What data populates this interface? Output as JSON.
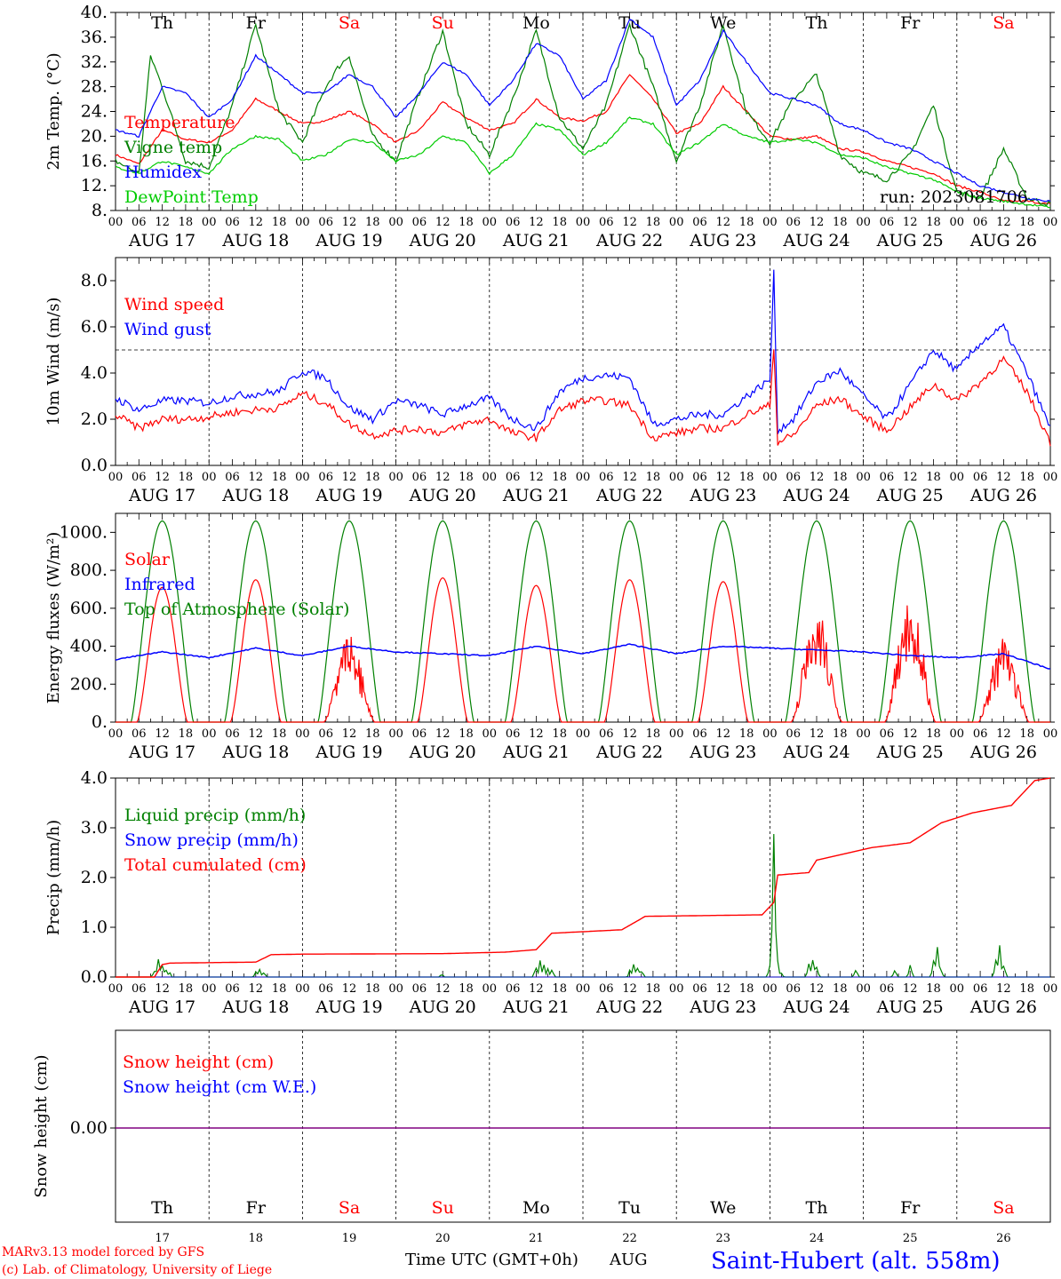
{
  "run_label": "run: 2023081706",
  "days": [
    "Th",
    "Fr",
    "Sa",
    "Su",
    "Mo",
    "Tu",
    "We",
    "Th",
    "Fr",
    "Sa"
  ],
  "weekend_color": "#ff0000",
  "dates": [
    "AUG 17",
    "AUG 18",
    "AUG 19",
    "AUG 20",
    "AUG 21",
    "AUG 22",
    "AUG 23",
    "AUG 24",
    "AUG 25",
    "AUG 26"
  ],
  "date_numbers": [
    "17",
    "18",
    "19",
    "20",
    "21",
    "22",
    "23",
    "24",
    "25",
    "26"
  ],
  "hour_ticks": [
    "00",
    "06",
    "12",
    "18"
  ],
  "final_hour": "00",
  "footer": {
    "model": "MARv3.13 model forced by GFS",
    "lab": "(c) Lab. of Climatology, University of Liege",
    "xlabel": "Time UTC (GMT+0h)",
    "month": "AUG",
    "station": "Saint-Hubert (alt. 558m)"
  },
  "colors": {
    "red": "#ff0000",
    "green": "#008000",
    "blue": "#0000ff",
    "lightgreen": "#00cc00",
    "purple": "#800080"
  },
  "chart_data": [
    {
      "type": "line",
      "ylabel": "2m Temp. (°C)",
      "ylim": [
        8,
        40
      ],
      "yticks": [
        "8.",
        "12.",
        "16.",
        "20.",
        "24.",
        "28.",
        "32.",
        "36.",
        "40."
      ],
      "x_units": "hours since Aug 17 00 UTC",
      "series": [
        {
          "name": "Temperature",
          "color": "red",
          "x": [
            0,
            6,
            12,
            18,
            24,
            30,
            36,
            42,
            48,
            54,
            60,
            66,
            72,
            78,
            84,
            90,
            96,
            102,
            108,
            114,
            120,
            126,
            132,
            138,
            144,
            150,
            156,
            162,
            168,
            174,
            180,
            186,
            192,
            198,
            204,
            210,
            216,
            222,
            228,
            234,
            240
          ],
          "values": [
            17,
            15.5,
            21,
            19.5,
            19,
            21,
            26,
            24,
            22,
            22.5,
            24,
            22,
            19,
            21,
            25.5,
            23,
            21,
            22,
            26,
            23,
            22.5,
            24,
            30,
            26,
            20.5,
            22,
            28,
            24,
            20,
            19.5,
            20,
            18,
            17.5,
            16,
            15,
            14,
            12,
            11,
            9.5,
            9.5,
            9
          ]
        },
        {
          "name": "Vigne temp",
          "color": "green",
          "x": [
            0,
            6,
            9,
            12,
            18,
            24,
            30,
            36,
            42,
            48,
            54,
            57,
            60,
            66,
            72,
            78,
            84,
            90,
            96,
            102,
            108,
            114,
            120,
            126,
            132,
            138,
            144,
            150,
            156,
            162,
            168,
            174,
            180,
            186,
            192,
            198,
            204,
            210,
            216,
            222,
            228,
            234,
            240
          ],
          "values": [
            16,
            14,
            33,
            28,
            16,
            15,
            25,
            38,
            24,
            19,
            28,
            31,
            33,
            20,
            16,
            27,
            37,
            22,
            17,
            26,
            37,
            23,
            18,
            25,
            38,
            28,
            16,
            25,
            38,
            24,
            19,
            26,
            30,
            17,
            14,
            13,
            17,
            25,
            11,
            10,
            18,
            10,
            9
          ]
        },
        {
          "name": "Humidex",
          "color": "blue",
          "x": [
            0,
            6,
            12,
            18,
            24,
            30,
            36,
            42,
            48,
            54,
            60,
            66,
            72,
            78,
            84,
            90,
            96,
            102,
            108,
            114,
            120,
            126,
            132,
            138,
            144,
            150,
            156,
            162,
            168,
            174,
            180,
            186,
            192,
            198,
            204,
            210,
            216,
            222,
            228,
            234,
            240
          ],
          "values": [
            21,
            20,
            28,
            27,
            23,
            26,
            33,
            30,
            27,
            27,
            30,
            28,
            23,
            27,
            32,
            30,
            25,
            29,
            35,
            33,
            26,
            29,
            39,
            36,
            25,
            29,
            37,
            32,
            27,
            26,
            25,
            22,
            21,
            19,
            18,
            16,
            14,
            12,
            11,
            10,
            9.5
          ]
        },
        {
          "name": "DewPoint Temp",
          "color": "lightgreen",
          "x": [
            0,
            6,
            12,
            18,
            24,
            30,
            36,
            42,
            48,
            54,
            60,
            66,
            72,
            78,
            84,
            90,
            96,
            102,
            108,
            114,
            120,
            126,
            132,
            138,
            144,
            150,
            156,
            162,
            168,
            174,
            180,
            186,
            192,
            198,
            204,
            210,
            216,
            222,
            228,
            234,
            240
          ],
          "values": [
            15,
            14,
            16,
            15,
            14,
            18,
            20,
            19.5,
            16,
            17,
            19.5,
            19,
            16,
            17,
            20,
            19,
            14,
            17,
            22,
            21,
            17,
            19,
            23,
            22,
            17,
            19,
            22,
            20,
            19,
            19.5,
            19,
            17,
            16.5,
            15,
            14,
            13,
            11,
            10,
            9.5,
            9,
            8.5
          ]
        }
      ]
    },
    {
      "type": "line",
      "ylabel": "10m Wind (m/s)",
      "ylim": [
        0,
        9
      ],
      "yticks": [
        "0.0",
        "2.0",
        "4.0",
        "6.0",
        "8.0"
      ],
      "reference_line": 5,
      "series": [
        {
          "name": "Wind speed",
          "color": "red",
          "x": [
            0,
            6,
            12,
            18,
            24,
            30,
            36,
            42,
            48,
            54,
            60,
            66,
            72,
            78,
            84,
            90,
            96,
            102,
            108,
            114,
            120,
            126,
            132,
            138,
            144,
            150,
            156,
            162,
            168,
            169,
            170,
            174,
            180,
            186,
            192,
            198,
            204,
            210,
            216,
            222,
            228,
            234,
            240
          ],
          "values": [
            2.2,
            1.6,
            2,
            2,
            2.1,
            2.3,
            2.4,
            2.5,
            3.1,
            2.7,
            1.8,
            1.3,
            1.5,
            1.6,
            1.4,
            1.8,
            2,
            1.4,
            1.2,
            2.4,
            2.8,
            2.8,
            2.6,
            1.2,
            1.4,
            1.6,
            1.6,
            2.2,
            2.6,
            5.2,
            1,
            1.3,
            2.6,
            2.9,
            2.1,
            1.5,
            2.5,
            3.5,
            2.8,
            3.6,
            4.6,
            3.2,
            1
          ]
        },
        {
          "name": "Wind gust",
          "color": "blue",
          "x": [
            0,
            6,
            12,
            18,
            24,
            30,
            36,
            42,
            48,
            54,
            60,
            66,
            72,
            78,
            84,
            90,
            96,
            102,
            108,
            114,
            120,
            126,
            132,
            138,
            144,
            150,
            156,
            162,
            168,
            169,
            170,
            174,
            180,
            186,
            192,
            198,
            204,
            210,
            216,
            222,
            228,
            234,
            240
          ],
          "values": [
            2.9,
            2.4,
            2.8,
            2.8,
            2.7,
            3,
            3.1,
            3.2,
            4.1,
            3.8,
            2.5,
            2,
            2.8,
            2.6,
            2.2,
            2.6,
            2.9,
            2,
            1.6,
            3.2,
            3.8,
            3.9,
            3.8,
            1.8,
            2,
            2.2,
            2.2,
            3,
            3.7,
            8.3,
            1.5,
            2,
            3.6,
            4.1,
            3,
            2,
            3.5,
            5,
            4.1,
            5.3,
            6,
            4,
            1.6
          ]
        }
      ]
    },
    {
      "type": "line",
      "ylabel": "Energy fluxes (W/m²)",
      "ylim": [
        0,
        1100
      ],
      "yticks": [
        "0.",
        "200.",
        "400.",
        "600.",
        "800.",
        "1000."
      ],
      "series": [
        {
          "name": "Solar",
          "color": "red",
          "daily_peaks": [
            710,
            750,
            420,
            760,
            720,
            750,
            740,
            540,
            620,
            400
          ]
        },
        {
          "name": "Infrared",
          "color": "blue",
          "x": [
            0,
            12,
            24,
            36,
            48,
            60,
            72,
            84,
            96,
            108,
            120,
            132,
            144,
            156,
            168,
            180,
            192,
            204,
            216,
            228,
            240
          ],
          "values": [
            330,
            370,
            340,
            390,
            350,
            400,
            370,
            360,
            350,
            400,
            360,
            410,
            360,
            400,
            390,
            380,
            370,
            350,
            340,
            360,
            280
          ]
        },
        {
          "name": "Top of Atmosphere (Solar)",
          "color": "green",
          "daily_peak": 1060
        }
      ]
    },
    {
      "type": "line",
      "ylabel": "Precip (mm/h)",
      "ylim": [
        0,
        4
      ],
      "yticks": [
        "0.0",
        "1.0",
        "2.0",
        "3.0",
        "4.0"
      ],
      "series": [
        {
          "name": "Liquid precip (mm/h)",
          "color": "green",
          "x": [
            10,
            11,
            12,
            13,
            14,
            36,
            37,
            38,
            84,
            108,
            109,
            110,
            111,
            112,
            132,
            133,
            134,
            135,
            168,
            169,
            170,
            171,
            178,
            179,
            180,
            190,
            200,
            204,
            210,
            211,
            212,
            226,
            227,
            228
          ],
          "values": [
            0.1,
            0.35,
            0.2,
            0.15,
            0.05,
            0.1,
            0.15,
            0.1,
            0.05,
            0.2,
            0.3,
            0.25,
            0.2,
            0.1,
            0.15,
            0.25,
            0.2,
            0.1,
            0.2,
            2.9,
            0.3,
            0.1,
            0.3,
            0.35,
            0.2,
            0.15,
            0.1,
            0.2,
            0.3,
            0.6,
            0.1,
            0.3,
            0.6,
            0.2
          ]
        },
        {
          "name": "Snow precip (mm/h)",
          "color": "blue",
          "x": [
            0,
            240
          ],
          "values": [
            0,
            0
          ]
        },
        {
          "name": "Total cumulated (cm)",
          "color": "red",
          "x": [
            0,
            10,
            12,
            14,
            36,
            40,
            48,
            84,
            100,
            108,
            112,
            130,
            136,
            166,
            169,
            170,
            178,
            180,
            194,
            204,
            212,
            220,
            230,
            236,
            240
          ],
          "values": [
            0,
            0,
            0.25,
            0.28,
            0.3,
            0.45,
            0.46,
            0.47,
            0.5,
            0.55,
            0.88,
            0.95,
            1.22,
            1.25,
            1.5,
            2.05,
            2.1,
            2.35,
            2.6,
            2.7,
            3.1,
            3.3,
            3.45,
            3.95,
            4.0
          ]
        }
      ]
    },
    {
      "type": "line",
      "ylabel": "Snow height (cm)",
      "yticks": [
        "0.00"
      ],
      "series": [
        {
          "name": "Snow height (cm)",
          "color": "red",
          "x": [
            0,
            240
          ],
          "values": [
            0,
            0
          ]
        },
        {
          "name": "Snow height (cm W.E.)",
          "color": "blue",
          "x": [
            0,
            240
          ],
          "values": [
            0,
            0
          ]
        }
      ]
    }
  ]
}
